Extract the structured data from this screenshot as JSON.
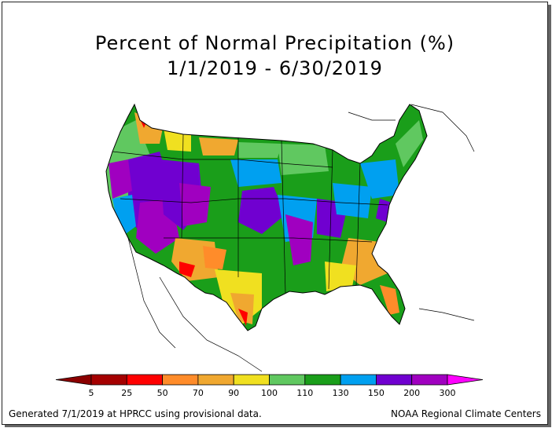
{
  "title": "Percent of Normal Precipitation (%)",
  "subtitle": "1/1/2019 - 6/30/2019",
  "legend": {
    "arrow_left_color": "#8b0000",
    "arrow_right_color": "#ff00ff",
    "bins": [
      {
        "label": "5",
        "color": "#a50000"
      },
      {
        "label": "25",
        "color": "#ff0000"
      },
      {
        "label": "50",
        "color": "#ff8c2a"
      },
      {
        "label": "70",
        "color": "#f0a830"
      },
      {
        "label": "90",
        "color": "#f0e020"
      },
      {
        "label": "100",
        "color": "#60c860"
      },
      {
        "label": "110",
        "color": "#1a9e1a"
      },
      {
        "label": "130",
        "color": "#00a0f0"
      },
      {
        "label": "150",
        "color": "#7000d0"
      },
      {
        "label": "200",
        "color": "#a000c0"
      },
      {
        "label": "300",
        "color": ""
      }
    ]
  },
  "footer": {
    "left": "Generated 7/1/2019 at HPRCC using provisional data.",
    "right": "NOAA Regional Climate Centers"
  }
}
